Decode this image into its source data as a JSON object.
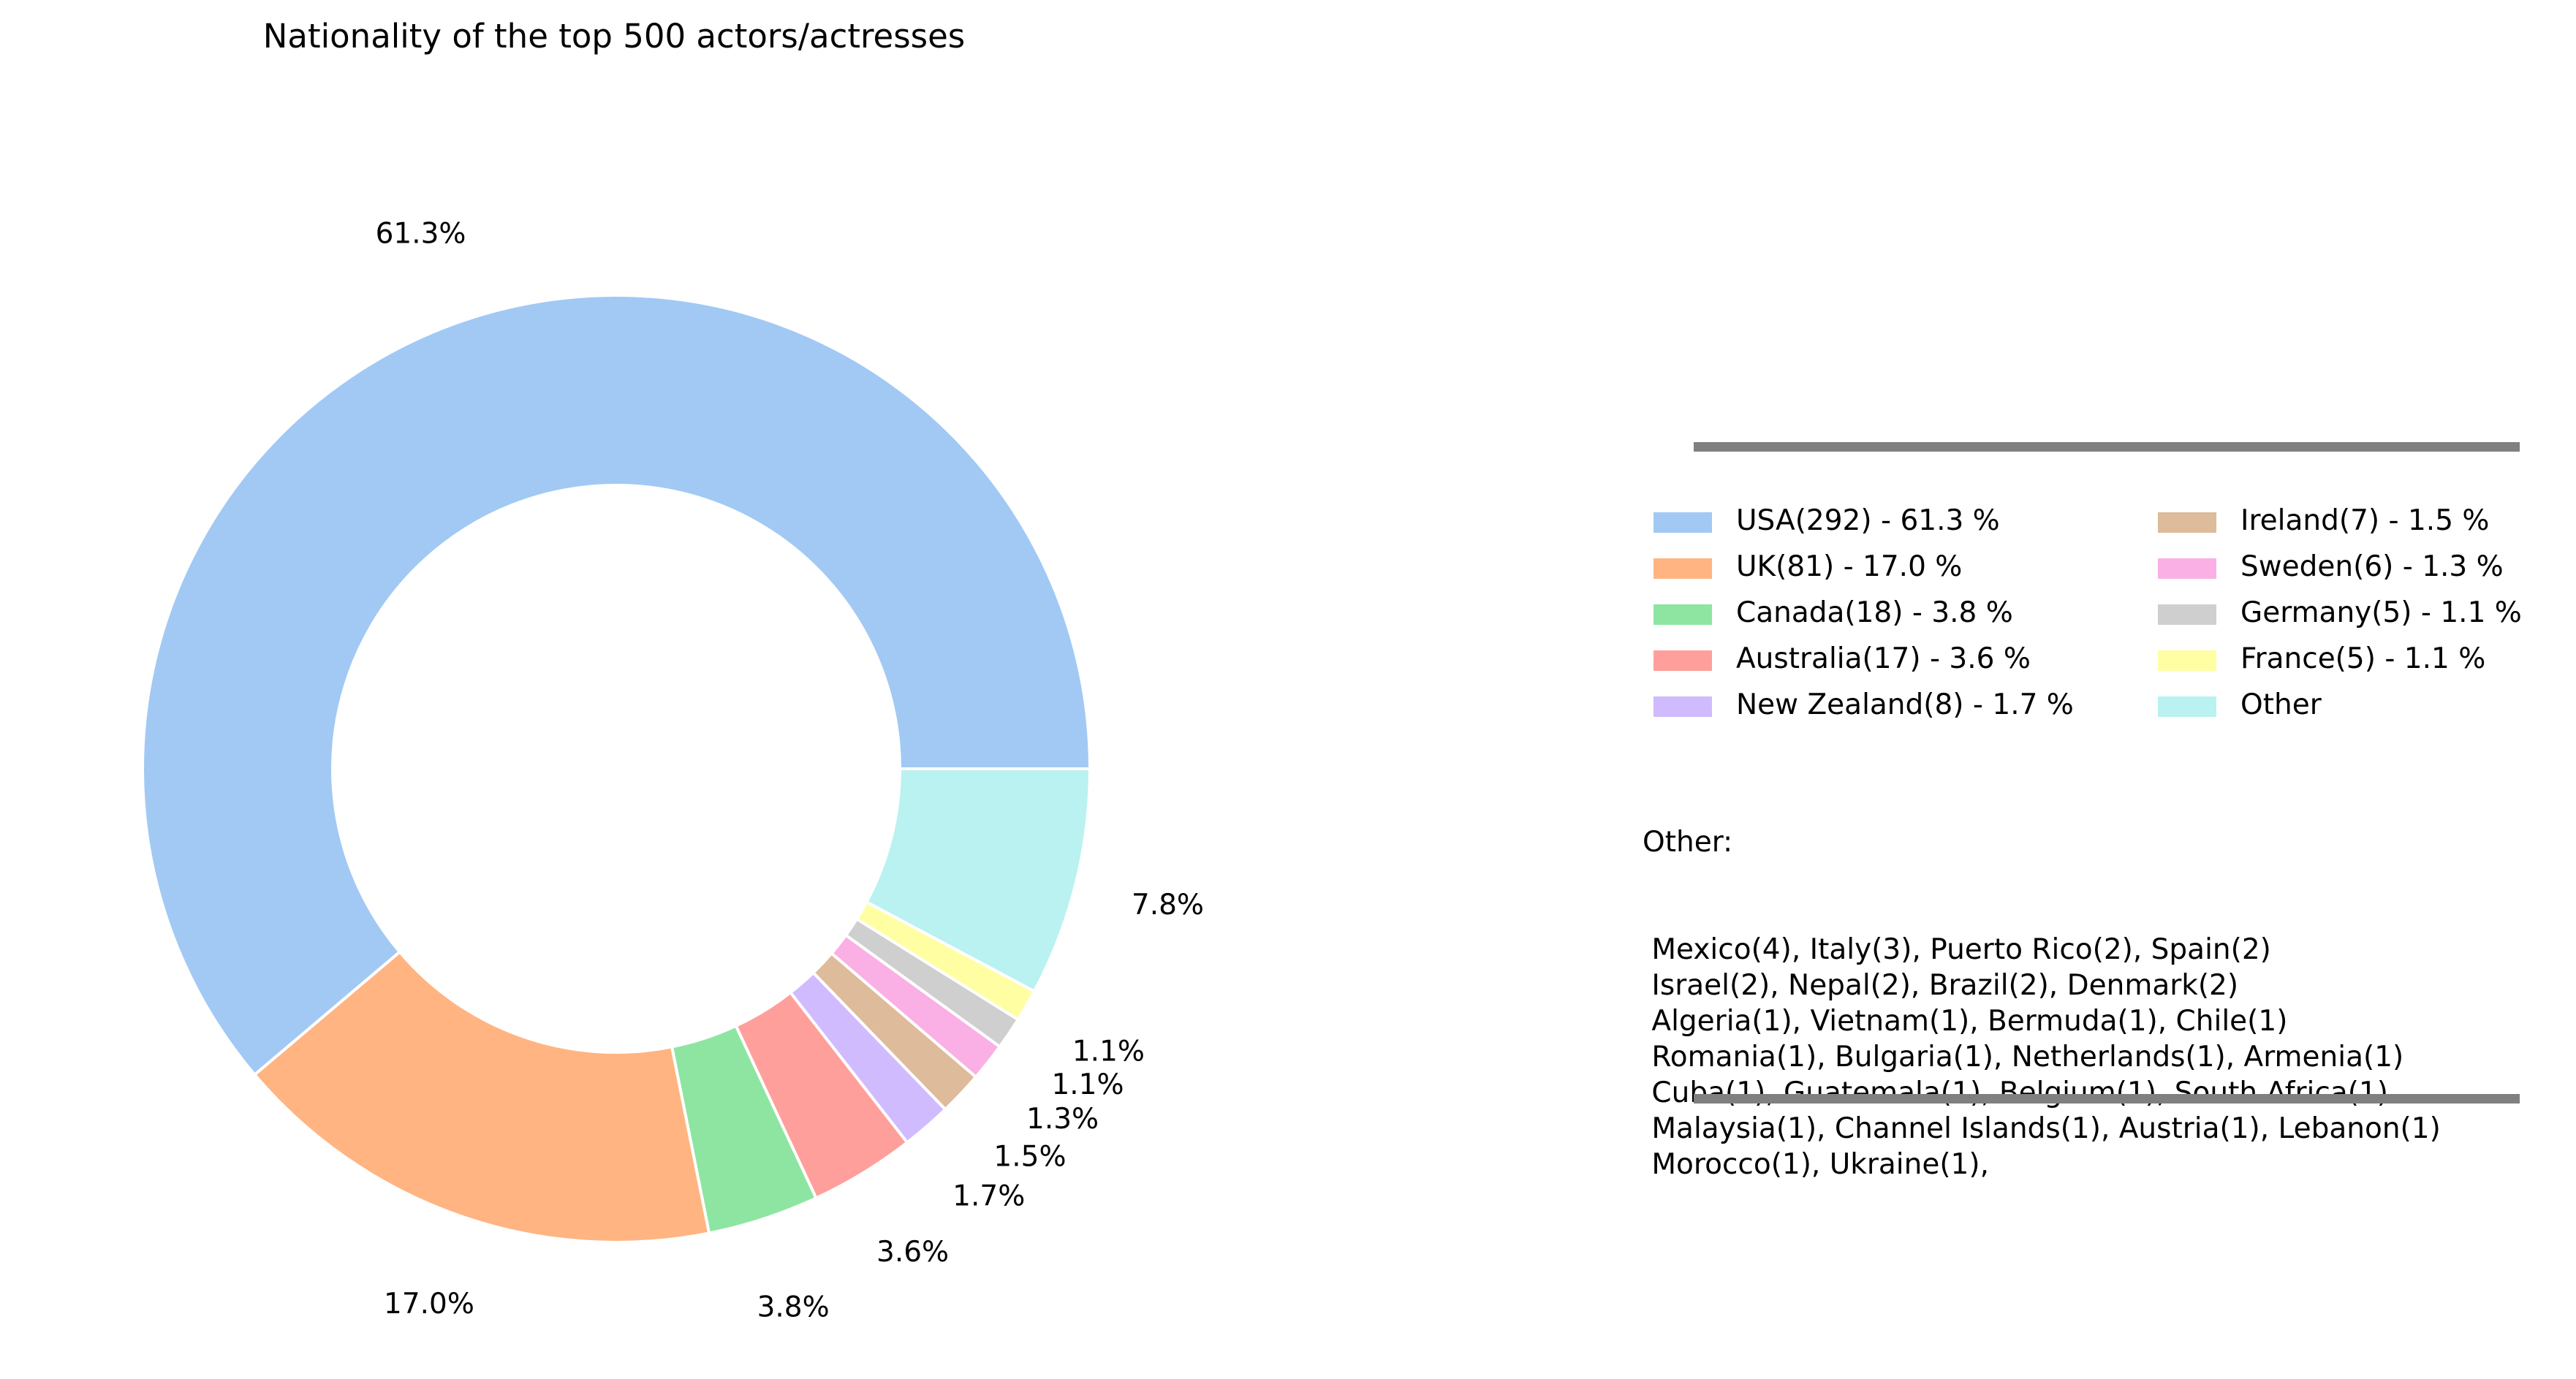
{
  "chart_data": {
    "type": "pie",
    "title": "Nationality of the top 500 actors/actresses",
    "donut": true,
    "slices": [
      {
        "label": "USA",
        "count": 292,
        "percent": 61.3,
        "pct_label": "61.3%",
        "legend": "USA(292) - 61.3 %",
        "color": "#a1c9f4"
      },
      {
        "label": "UK",
        "count": 81,
        "percent": 17.0,
        "pct_label": "17.0%",
        "legend": "UK(81) - 17.0 %",
        "color": "#ffb482"
      },
      {
        "label": "Canada",
        "count": 18,
        "percent": 3.8,
        "pct_label": "3.8%",
        "legend": "Canada(18) - 3.8 %",
        "color": "#8de5a1"
      },
      {
        "label": "Australia",
        "count": 17,
        "percent": 3.6,
        "pct_label": "3.6%",
        "legend": "Australia(17) - 3.6 %",
        "color": "#ff9f9b"
      },
      {
        "label": "New Zealand",
        "count": 8,
        "percent": 1.7,
        "pct_label": "1.7%",
        "legend": "New Zealand(8) - 1.7 %",
        "color": "#d0bbff"
      },
      {
        "label": "Ireland",
        "count": 7,
        "percent": 1.5,
        "pct_label": "1.5%",
        "legend": "Ireland(7) - 1.5 %",
        "color": "#debb9b"
      },
      {
        "label": "Sweden",
        "count": 6,
        "percent": 1.3,
        "pct_label": "1.3%",
        "legend": "Sweden(6) - 1.3 %",
        "color": "#fab0e4"
      },
      {
        "label": "Germany",
        "count": 5,
        "percent": 1.1,
        "pct_label": "1.1%",
        "legend": "Germany(5) - 1.1 %",
        "color": "#cfcfcf"
      },
      {
        "label": "France",
        "count": 5,
        "percent": 1.1,
        "pct_label": "1.1%",
        "legend": "France(5) - 1.1 %",
        "color": "#fffea3"
      },
      {
        "label": "Other",
        "count": 37,
        "percent": 7.8,
        "pct_label": "7.8%",
        "legend": "Other",
        "color": "#b9f2f0"
      }
    ],
    "legend_placement": "right",
    "other_heading": "Other:",
    "other_lines": [
      " Mexico(4), Italy(3), Puerto Rico(2), Spain(2)",
      " Israel(2), Nepal(2), Brazil(2), Denmark(2)",
      " Algeria(1), Vietnam(1), Bermuda(1), Chile(1)",
      " Romania(1), Bulgaria(1), Netherlands(1), Armenia(1)",
      " Cuba(1), Guatemala(1), Belgium(1), South Africa(1)",
      " Malaysia(1), Channel Islands(1), Austria(1), Lebanon(1)",
      " Morocco(1), Ukraine(1),"
    ]
  }
}
